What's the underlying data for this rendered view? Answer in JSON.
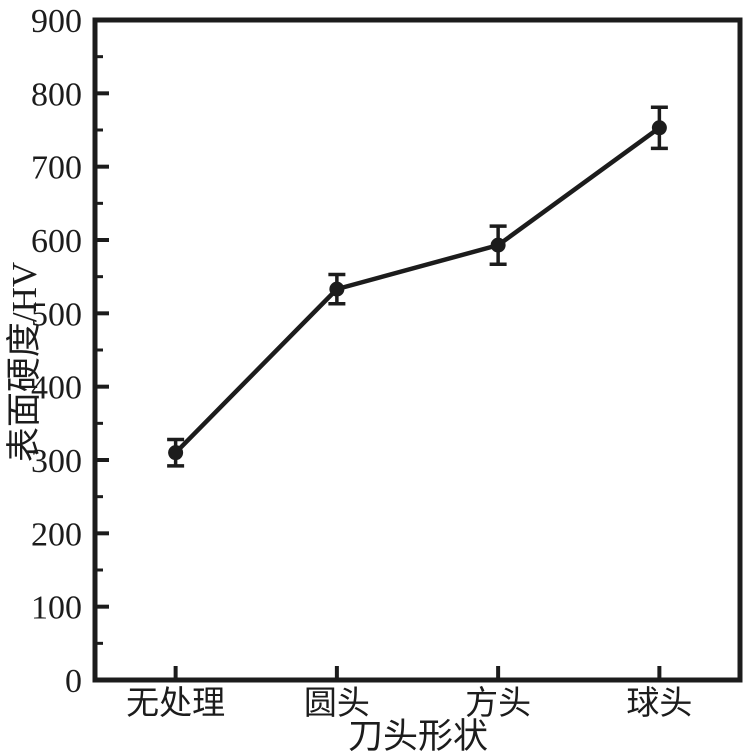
{
  "figure": {
    "background": "#ffffff",
    "ink_color": "#1c1c1c"
  },
  "chart_data": {
    "type": "line",
    "categories": [
      "无处理",
      "圆头",
      "方头",
      "球头"
    ],
    "series": [
      {
        "name": "表面硬度",
        "values": [
          310,
          533,
          593,
          753
        ],
        "errors": [
          18,
          20,
          26,
          28
        ]
      }
    ],
    "title": "",
    "xlabel": "刀头形状",
    "ylabel": "表面硬度/HV",
    "ylim": [
      0,
      900
    ],
    "yticks": [
      0,
      100,
      200,
      300,
      400,
      500,
      600,
      700,
      800,
      900
    ],
    "ytick_minor_step": 50,
    "grid": false,
    "legend_position": "none",
    "marker": "filled-circle",
    "error_bars": true,
    "tick_direction": "in"
  }
}
